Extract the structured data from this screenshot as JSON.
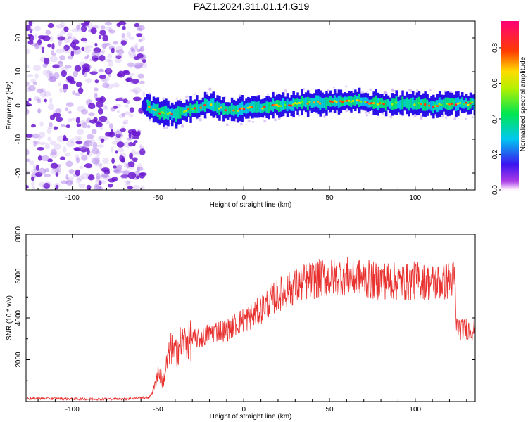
{
  "page_title": "PAZ1.2024.311.01.14.G19",
  "chart_data": [
    {
      "type": "heatmap",
      "title": "PAZ1.2024.311.01.14.G19",
      "xlabel": "Height of straight line (km)",
      "ylabel": "Frequency (Hz)",
      "xlim": [
        -127,
        135
      ],
      "ylim": [
        -25,
        25
      ],
      "x_ticks": [
        "-100",
        "-50",
        "0",
        "50",
        "100"
      ],
      "y_ticks": [
        "-20",
        "-10",
        "0",
        "10",
        "20"
      ],
      "noise_region_km": [
        -127,
        -60
      ],
      "signal_onset_km": -58,
      "ridge": {
        "x": [
          -58,
          -50,
          -40,
          -30,
          -20,
          -10,
          0,
          10,
          20,
          30,
          40,
          50,
          60,
          70,
          80,
          90,
          100,
          110,
          120,
          130,
          135
        ],
        "freq": [
          0.0,
          -2.0,
          -2.5,
          -1.0,
          0.5,
          -1.5,
          -1.0,
          -0.5,
          0.0,
          0.5,
          1.0,
          1.0,
          1.5,
          1.0,
          0.5,
          0.5,
          0.5,
          0.0,
          0.5,
          0.5,
          0.5
        ]
      },
      "colorbar": {
        "label": "Normalized spectral amplitude",
        "ticks": [
          "0.0",
          "0.2",
          "0.4",
          "0.6",
          "0.8"
        ],
        "range": [
          0,
          0.95
        ],
        "colormap": "rainbow"
      },
      "colors": {
        "noise": "#7a1fd6",
        "ridge_core": "#e8201c"
      }
    },
    {
      "type": "line",
      "xlabel": "Height of straight line (km)",
      "ylabel": "SNR (10 * v/v)",
      "xlim": [
        -127,
        135
      ],
      "ylim": [
        0,
        8000
      ],
      "x_ticks": [
        "-100",
        "-50",
        "0",
        "50",
        "100"
      ],
      "y_ticks": [
        "2000",
        "4000",
        "6000",
        "8000"
      ],
      "line_color": "#e8312f",
      "series": [
        {
          "x": [
            -127,
            -110,
            -90,
            -70,
            -55,
            -52,
            -50,
            -47,
            -45,
            -42,
            -40,
            -38,
            -35,
            -30,
            -25,
            -20,
            -15,
            -10,
            -5,
            0,
            5,
            10,
            15,
            20,
            25,
            30,
            35,
            40,
            45,
            50,
            55,
            60,
            65,
            70,
            75,
            80,
            85,
            90,
            95,
            100,
            105,
            110,
            115,
            120,
            123,
            124,
            126,
            128,
            130,
            132,
            135
          ],
          "values": [
            150,
            140,
            120,
            130,
            200,
            700,
            1500,
            900,
            1800,
            2600,
            2200,
            2700,
            2800,
            3000,
            3000,
            3300,
            3400,
            3400,
            3700,
            3900,
            4100,
            4400,
            4800,
            5100,
            5300,
            5500,
            5700,
            5800,
            5900,
            5900,
            6000,
            6000,
            5900,
            5900,
            5800,
            5800,
            5800,
            5700,
            5700,
            5800,
            5800,
            5700,
            5700,
            5800,
            5900,
            3600,
            3500,
            3400,
            3500,
            3400,
            3500
          ]
        }
      ]
    }
  ]
}
